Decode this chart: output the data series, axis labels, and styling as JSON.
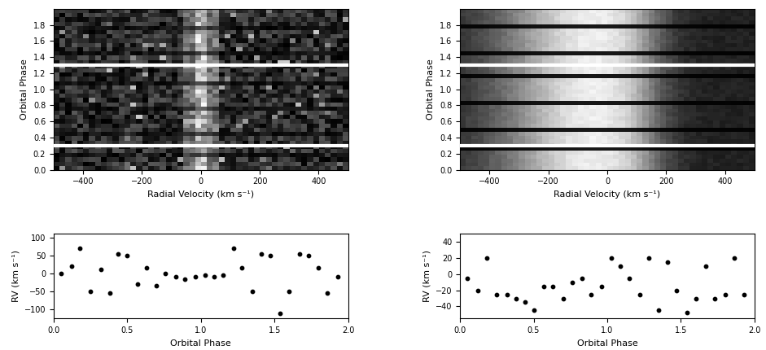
{
  "rv_xlabel": "Orbital Phase",
  "rv_ylabel": "RV (km s⁻¹)",
  "ccf_xlabel": "Radial Velocity (km s⁻¹)",
  "ccf_ylabel": "Orbital Phase",
  "rv_xlim": [
    0.0,
    2.0
  ],
  "rv_ylim_blue": [
    -125,
    110
  ],
  "rv_ylim_red": [
    -55,
    50
  ],
  "ccf_xlim": [
    -500,
    500
  ],
  "ccf_ylim": [
    0.0,
    2.0
  ],
  "blue_rv_phases": [
    0.05,
    0.12,
    0.18,
    0.25,
    0.32,
    0.38,
    0.44,
    0.5,
    0.57,
    0.63,
    0.7,
    0.76,
    0.83,
    0.89,
    0.96,
    1.03,
    1.09,
    1.15,
    1.22,
    1.28,
    1.35,
    1.41,
    1.47,
    1.54,
    1.6,
    1.67,
    1.73,
    1.8,
    1.86,
    1.93
  ],
  "blue_rv_values": [
    0,
    20,
    70,
    -50,
    10,
    -55,
    55,
    50,
    -30,
    15,
    -35,
    0,
    -10,
    -15,
    -10,
    -5,
    -10,
    -5,
    70,
    15,
    -50,
    55,
    50,
    -110,
    -50,
    55,
    50,
    15,
    -55,
    -10
  ],
  "red_rv_phases": [
    0.05,
    0.12,
    0.18,
    0.25,
    0.32,
    0.38,
    0.44,
    0.5,
    0.57,
    0.63,
    0.7,
    0.76,
    0.83,
    0.89,
    0.96,
    1.03,
    1.09,
    1.15,
    1.22,
    1.28,
    1.35,
    1.41,
    1.47,
    1.54,
    1.6,
    1.67,
    1.73,
    1.8,
    1.86,
    1.93
  ],
  "red_rv_values": [
    -5,
    -20,
    20,
    -25,
    -25,
    -30,
    -35,
    -45,
    -15,
    -15,
    -30,
    -10,
    -5,
    -25,
    -15,
    20,
    10,
    -5,
    -25,
    20,
    -45,
    15,
    -20,
    -48,
    -30,
    10,
    -30,
    -25,
    20,
    -25
  ],
  "white_line_phases_blue": [
    0.3,
    1.3
  ],
  "white_line_phases_red": [
    0.3,
    1.3
  ],
  "rv_yticks_blue": [
    -100,
    -50,
    0,
    50,
    100
  ],
  "rv_yticks_red": [
    -40,
    -20,
    0,
    20,
    40
  ],
  "rv_xticks": [
    0.0,
    0.5,
    1.0,
    1.5,
    2.0
  ],
  "ccf_xticks": [
    -400,
    -200,
    0,
    200,
    400
  ],
  "ccf_yticks": [
    0.0,
    0.2,
    0.4,
    0.6,
    0.8,
    1.0,
    1.2,
    1.4,
    1.6,
    1.8
  ]
}
